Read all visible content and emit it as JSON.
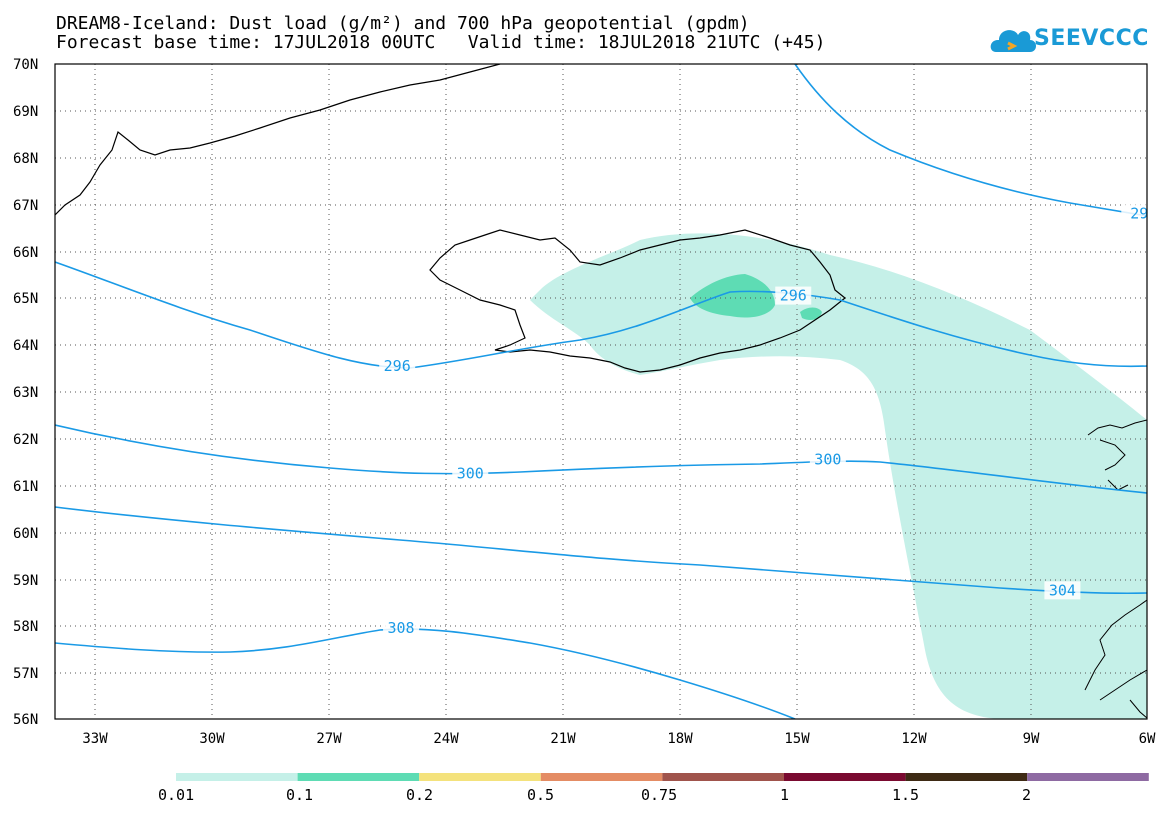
{
  "header": {
    "title_line1": "DREAM8-Iceland: Dust load (g/m²) and 700 hPa geopotential (gpdm)",
    "title_line2": "Forecast base time: 17JUL2018 00UTC   Valid time: 18JUL2018 21UTC (+45)",
    "logo_text": "SEEVCCC"
  },
  "map": {
    "lat_labels": [
      "70N",
      "69N",
      "68N",
      "67N",
      "66N",
      "65N",
      "64N",
      "63N",
      "62N",
      "61N",
      "60N",
      "59N",
      "58N",
      "57N",
      "56N"
    ],
    "lon_labels": [
      "33W",
      "30W",
      "27W",
      "24W",
      "21W",
      "18W",
      "15W",
      "12W",
      "9W",
      "6W"
    ],
    "lat_range": [
      56,
      70
    ],
    "lon_range": [
      -34.4,
      -6
    ],
    "grid": "dotted",
    "contour_color": "#1a9ae6",
    "contour_labels": [
      {
        "text": "296",
        "lon": -25.5,
        "lat": 63.55
      },
      {
        "text": "296",
        "lon": -15.2,
        "lat": 65.05
      },
      {
        "text": "300",
        "lon": -23.6,
        "lat": 61.25
      },
      {
        "text": "300",
        "lon": -14.3,
        "lat": 61.55
      },
      {
        "text": "304",
        "lon": -8.2,
        "lat": 58.75
      },
      {
        "text": "308",
        "lon": -25.4,
        "lat": 57.95
      },
      {
        "text": "29",
        "lon": -6.2,
        "lat": 66.8
      }
    ]
  },
  "legend": {
    "colors": [
      "#c5f0e8",
      "#5edcb4",
      "#f4e27c",
      "#e48c64",
      "#a0544c",
      "#7a0a30",
      "#3e2a14",
      "#8e6aa2"
    ],
    "labels": [
      "0.01",
      "0.1",
      "0.2",
      "0.5",
      "0.75",
      "1",
      "1.5",
      "2"
    ]
  }
}
